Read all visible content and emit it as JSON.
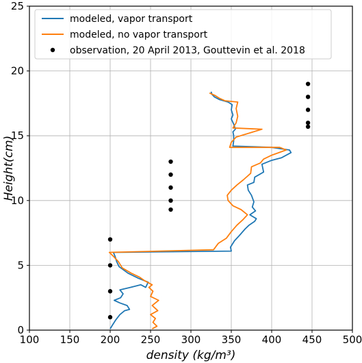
{
  "chart_data": {
    "type": "line",
    "xlabel": "density (kg/m³)",
    "ylabel": "Height(cm)",
    "xlim": [
      100,
      500
    ],
    "ylim": [
      0,
      25
    ],
    "xticks": [
      100,
      150,
      200,
      250,
      300,
      350,
      400,
      450,
      500
    ],
    "yticks": [
      0,
      5,
      10,
      15,
      20,
      25
    ],
    "grid": true,
    "legend_position": "top-left",
    "colors": {
      "vapor": "#1f77b4",
      "no_vapor": "#ff7f0e",
      "observation": "#000000"
    },
    "series": [
      {
        "name": "modeled, vapor transport",
        "kind": "line",
        "points": [
          [
            200,
            0.1
          ],
          [
            203,
            0.4
          ],
          [
            207,
            0.8
          ],
          [
            212,
            1.2
          ],
          [
            218,
            1.5
          ],
          [
            224,
            1.6
          ],
          [
            221,
            1.9
          ],
          [
            212,
            2.1
          ],
          [
            205,
            2.3
          ],
          [
            213,
            2.5
          ],
          [
            216,
            2.8
          ],
          [
            212,
            3.1
          ],
          [
            225,
            3.3
          ],
          [
            238,
            3.5
          ],
          [
            244,
            3.3
          ],
          [
            247,
            3.7
          ],
          [
            235,
            4.0
          ],
          [
            222,
            4.4
          ],
          [
            211,
            4.9
          ],
          [
            208,
            5.3
          ],
          [
            206,
            5.7
          ],
          [
            204,
            6.0
          ],
          [
            350,
            6.1
          ],
          [
            349,
            6.4
          ],
          [
            354,
            6.9
          ],
          [
            360,
            7.3
          ],
          [
            367,
            7.8
          ],
          [
            372,
            8.1
          ],
          [
            379,
            8.4
          ],
          [
            381,
            8.6
          ],
          [
            373,
            8.9
          ],
          [
            380,
            9.2
          ],
          [
            376,
            9.5
          ],
          [
            378,
            9.9
          ],
          [
            375,
            10.4
          ],
          [
            371,
            10.8
          ],
          [
            370,
            11.2
          ],
          [
            378,
            11.4
          ],
          [
            379,
            11.8
          ],
          [
            390,
            12.2
          ],
          [
            388,
            12.8
          ],
          [
            400,
            13.1
          ],
          [
            412,
            13.3
          ],
          [
            424,
            13.7
          ],
          [
            422,
            13.9
          ],
          [
            400,
            14.1
          ],
          [
            352,
            14.2
          ],
          [
            353,
            14.6
          ],
          [
            353,
            15.0
          ],
          [
            352,
            15.3
          ],
          [
            355,
            15.5
          ],
          [
            353,
            15.9
          ],
          [
            350,
            16.3
          ],
          [
            352,
            16.6
          ],
          [
            350,
            17.0
          ],
          [
            351,
            17.4
          ],
          [
            346,
            17.6
          ],
          [
            335,
            17.8
          ],
          [
            329,
            18.0
          ],
          [
            326,
            18.2
          ],
          [
            325,
            18.4
          ]
        ]
      },
      {
        "name": "modeled, no vapor transport",
        "kind": "line",
        "points": [
          [
            252,
            0.1
          ],
          [
            258,
            0.3
          ],
          [
            253,
            0.6
          ],
          [
            256,
            0.9
          ],
          [
            250,
            1.2
          ],
          [
            259,
            1.5
          ],
          [
            252,
            1.9
          ],
          [
            260,
            2.3
          ],
          [
            250,
            2.6
          ],
          [
            253,
            3.0
          ],
          [
            248,
            3.3
          ],
          [
            252,
            3.5
          ],
          [
            243,
            3.8
          ],
          [
            236,
            4.1
          ],
          [
            226,
            4.4
          ],
          [
            215,
            4.8
          ],
          [
            210,
            5.3
          ],
          [
            204,
            5.7
          ],
          [
            199,
            6.0
          ],
          [
            328,
            6.2
          ],
          [
            334,
            6.7
          ],
          [
            344,
            7.1
          ],
          [
            350,
            7.6
          ],
          [
            357,
            8.1
          ],
          [
            364,
            8.5
          ],
          [
            370,
            8.9
          ],
          [
            362,
            9.3
          ],
          [
            352,
            9.6
          ],
          [
            346,
            10.0
          ],
          [
            345,
            10.4
          ],
          [
            350,
            10.8
          ],
          [
            357,
            11.2
          ],
          [
            365,
            11.6
          ],
          [
            374,
            12.1
          ],
          [
            375,
            12.6
          ],
          [
            386,
            12.9
          ],
          [
            390,
            13.2
          ],
          [
            400,
            13.5
          ],
          [
            418,
            13.9
          ],
          [
            410,
            14.1
          ],
          [
            348,
            14.1
          ],
          [
            350,
            14.5
          ],
          [
            356,
            14.9
          ],
          [
            388,
            15.5
          ],
          [
            352,
            15.6
          ],
          [
            356,
            16.0
          ],
          [
            358,
            16.5
          ],
          [
            356,
            17.1
          ],
          [
            358,
            17.6
          ],
          [
            342,
            17.7
          ],
          [
            335,
            17.9
          ],
          [
            330,
            18.1
          ],
          [
            323,
            18.3
          ]
        ]
      },
      {
        "name": "observation, 20 April 2013, Gouttevin et al. 2018",
        "kind": "scatter",
        "points": [
          [
            200,
            1.0
          ],
          [
            200,
            3.0
          ],
          [
            200,
            5.0
          ],
          [
            200,
            7.0
          ],
          [
            275,
            9.3
          ],
          [
            275,
            10.0
          ],
          [
            275,
            11.0
          ],
          [
            275,
            12.0
          ],
          [
            275,
            13.0
          ],
          [
            445,
            15.7
          ],
          [
            445,
            16.0
          ],
          [
            445,
            17.0
          ],
          [
            445,
            18.0
          ],
          [
            445,
            19.0
          ]
        ]
      }
    ]
  }
}
